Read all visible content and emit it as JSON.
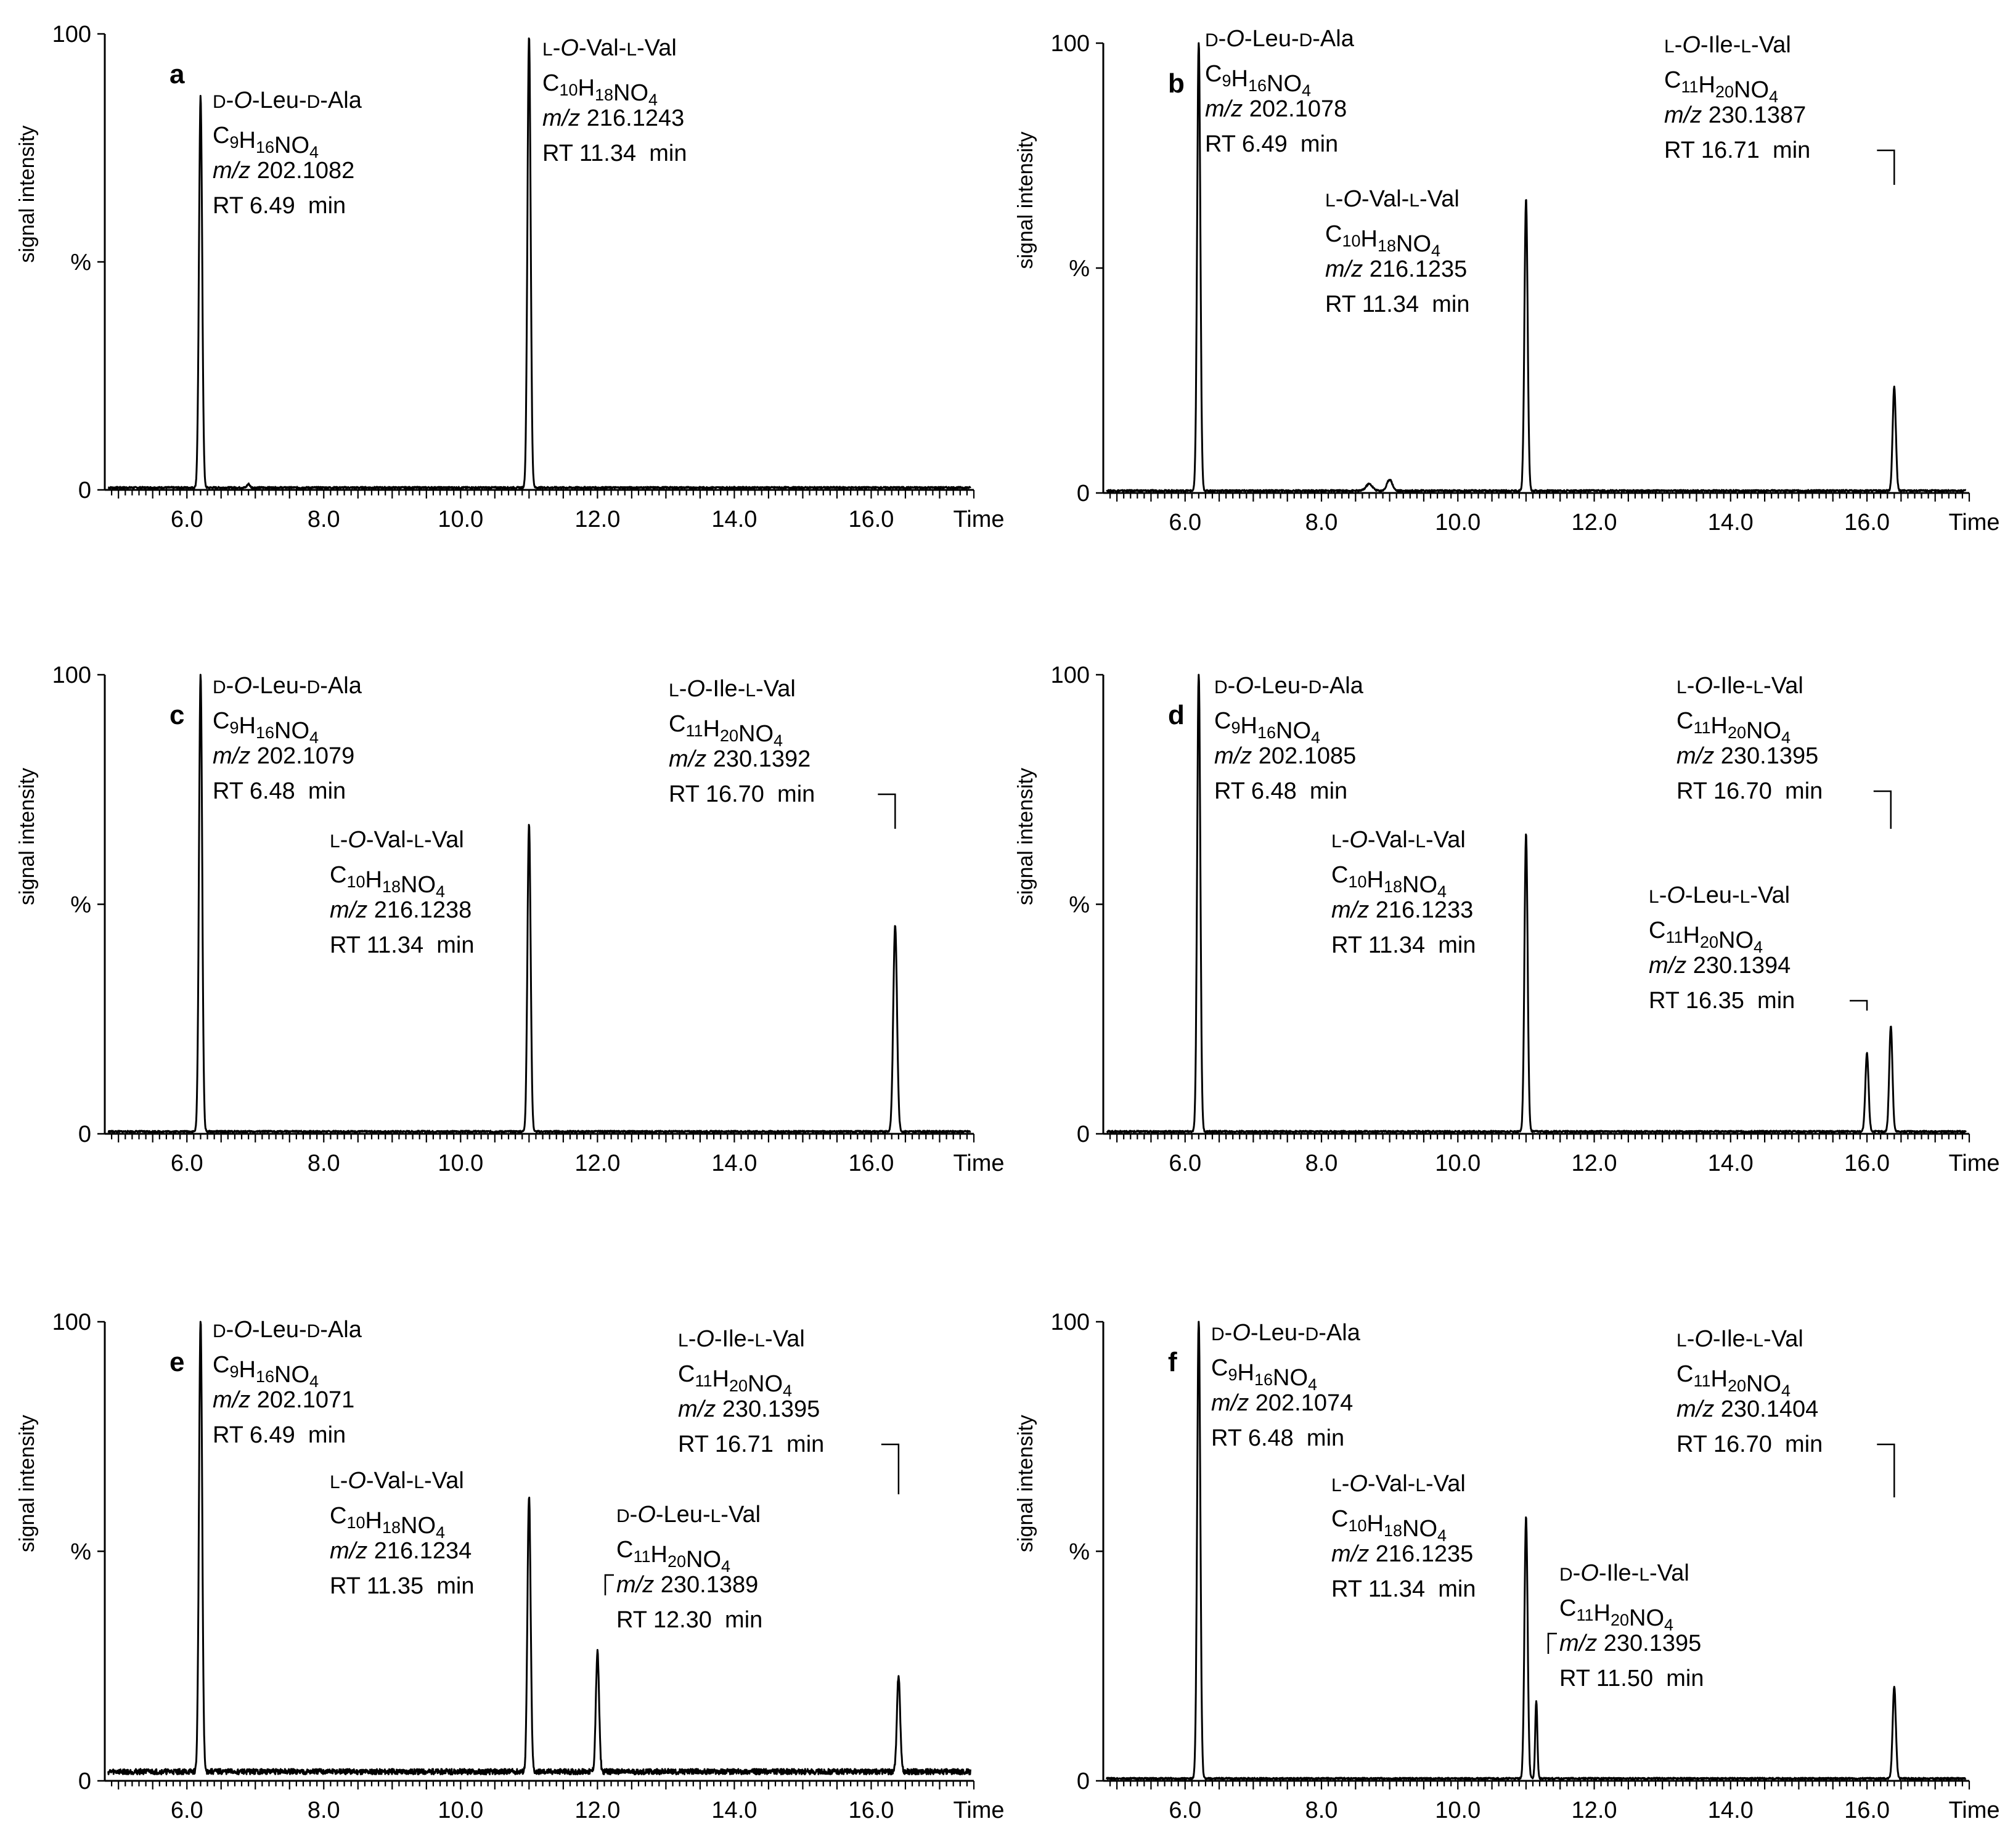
{
  "chart_data": [
    {
      "panel": "a",
      "type": "line",
      "xlabel": "Time",
      "ylabel": "signal intensity",
      "ylabel_unit": "%",
      "x_ticks": [
        "6.0",
        "8.0",
        "10.0",
        "12.0",
        "14.0",
        "16.0"
      ],
      "y_ticks": [
        "0",
        "%",
        "100"
      ],
      "xlim": [
        4.8,
        17.5
      ],
      "ylim": [
        0,
        100
      ],
      "baseline": 0.5,
      "peaks": [
        {
          "rt": 6.2,
          "height": 86,
          "width": 0.06
        },
        {
          "rt": 11.0,
          "height": 99,
          "width": 0.06
        },
        {
          "rt": 6.9,
          "height": 0.8,
          "width": 0.05
        }
      ],
      "annotations": [
        {
          "name": "D-O-Leu-D-Ala",
          "formula": "C9H16NO4",
          "mz": "202.1082",
          "rt_label": "RT 6.49  min"
        },
        {
          "name": "L-O-Val-L-Val",
          "formula": "C10H18NO4",
          "mz": "216.1243",
          "rt_label": "RT 11.34  min"
        }
      ]
    },
    {
      "panel": "b",
      "type": "line",
      "xlabel": "Time",
      "ylabel": "signal intensity",
      "ylabel_unit": "%",
      "x_ticks": [
        "6.0",
        "8.0",
        "10.0",
        "12.0",
        "14.0",
        "16.0"
      ],
      "y_ticks": [
        "0",
        "%",
        "100"
      ],
      "xlim": [
        4.8,
        17.5
      ],
      "ylim": [
        0,
        100
      ],
      "baseline": 0.5,
      "peaks": [
        {
          "rt": 6.2,
          "height": 100,
          "width": 0.06
        },
        {
          "rt": 11.0,
          "height": 65,
          "width": 0.06
        },
        {
          "rt": 16.4,
          "height": 23,
          "width": 0.06
        },
        {
          "rt": 8.7,
          "height": 1.5,
          "width": 0.12
        },
        {
          "rt": 9.0,
          "height": 2.5,
          "width": 0.1
        }
      ],
      "annotations": [
        {
          "name": "D-O-Leu-D-Ala",
          "formula": "C9H16NO4",
          "mz": "202.1078",
          "rt_label": "RT 6.49  min"
        },
        {
          "name": "L-O-Val-L-Val",
          "formula": "C10H18NO4",
          "mz": "216.1235",
          "rt_label": "RT 11.34  min"
        },
        {
          "name": "L-O-Ile-L-Val",
          "formula": "C11H20NO4",
          "mz": "230.1387",
          "rt_label": "RT 16.71  min"
        }
      ]
    },
    {
      "panel": "c",
      "type": "line",
      "xlabel": "Time",
      "ylabel": "signal intensity",
      "ylabel_unit": "%",
      "x_ticks": [
        "6.0",
        "8.0",
        "10.0",
        "12.0",
        "14.0",
        "16.0"
      ],
      "y_ticks": [
        "0",
        "%",
        "100"
      ],
      "xlim": [
        4.8,
        17.5
      ],
      "ylim": [
        0,
        100
      ],
      "baseline": 0.5,
      "peaks": [
        {
          "rt": 6.2,
          "height": 100,
          "width": 0.06
        },
        {
          "rt": 11.0,
          "height": 67,
          "width": 0.06
        },
        {
          "rt": 16.35,
          "height": 45,
          "width": 0.07
        }
      ],
      "annotations": [
        {
          "name": "D-O-Leu-D-Ala",
          "formula": "C9H16NO4",
          "mz": "202.1079",
          "rt_label": "RT 6.48  min"
        },
        {
          "name": "L-O-Val-L-Val",
          "formula": "C10H18NO4",
          "mz": "216.1238",
          "rt_label": "RT 11.34  min"
        },
        {
          "name": "L-O-Ile-L-Val",
          "formula": "C11H20NO4",
          "mz": "230.1392",
          "rt_label": "RT 16.70  min"
        }
      ]
    },
    {
      "panel": "d",
      "type": "line",
      "xlabel": "Time",
      "ylabel": "signal intensity",
      "ylabel_unit": "%",
      "x_ticks": [
        "6.0",
        "8.0",
        "10.0",
        "12.0",
        "14.0",
        "16.0"
      ],
      "y_ticks": [
        "0",
        "%",
        "100"
      ],
      "xlim": [
        4.8,
        17.5
      ],
      "ylim": [
        0,
        100
      ],
      "baseline": 0.5,
      "peaks": [
        {
          "rt": 6.2,
          "height": 100,
          "width": 0.06
        },
        {
          "rt": 11.0,
          "height": 65,
          "width": 0.06
        },
        {
          "rt": 16.0,
          "height": 17,
          "width": 0.06
        },
        {
          "rt": 16.35,
          "height": 23,
          "width": 0.06
        }
      ],
      "annotations": [
        {
          "name": "D-O-Leu-D-Ala",
          "formula": "C9H16NO4",
          "mz": "202.1085",
          "rt_label": "RT 6.48  min"
        },
        {
          "name": "L-O-Val-L-Val",
          "formula": "C10H18NO4",
          "mz": "216.1233",
          "rt_label": "RT 11.34  min"
        },
        {
          "name": "L-O-Ile-L-Val",
          "formula": "C11H20NO4",
          "mz": "230.1395",
          "rt_label": "RT 16.70  min"
        },
        {
          "name": "L-O-Leu-L-Val",
          "formula": "C11H20NO4",
          "mz": "230.1394",
          "rt_label": "RT 16.35  min"
        }
      ]
    },
    {
      "panel": "e",
      "type": "line",
      "xlabel": "Time",
      "ylabel": "signal intensity",
      "ylabel_unit": "%",
      "x_ticks": [
        "6.0",
        "8.0",
        "10.0",
        "12.0",
        "14.0",
        "16.0"
      ],
      "y_ticks": [
        "0",
        "%",
        "100"
      ],
      "xlim": [
        4.8,
        17.5
      ],
      "ylim": [
        0,
        100
      ],
      "baseline": 2,
      "peaks": [
        {
          "rt": 6.2,
          "height": 99,
          "width": 0.06
        },
        {
          "rt": 11.0,
          "height": 60,
          "width": 0.06
        },
        {
          "rt": 12.0,
          "height": 26,
          "width": 0.06
        },
        {
          "rt": 16.4,
          "height": 21,
          "width": 0.06
        }
      ],
      "annotations": [
        {
          "name": "D-O-Leu-D-Ala",
          "formula": "C9H16NO4",
          "mz": "202.1071",
          "rt_label": "RT 6.49  min"
        },
        {
          "name": "L-O-Val-L-Val",
          "formula": "C10H18NO4",
          "mz": "216.1234",
          "rt_label": "RT 11.35  min"
        },
        {
          "name": "D-O-Leu-L-Val",
          "formula": "C11H20NO4",
          "mz": "230.1389",
          "rt_label": "RT 12.30  min"
        },
        {
          "name": "L-O-Ile-L-Val",
          "formula": "C11H20NO4",
          "mz": "230.1395",
          "rt_label": "RT 16.71  min"
        }
      ]
    },
    {
      "panel": "f",
      "type": "line",
      "xlabel": "Time",
      "ylabel": "signal intensity",
      "ylabel_unit": "%",
      "x_ticks": [
        "6.0",
        "8.0",
        "10.0",
        "12.0",
        "14.0",
        "16.0"
      ],
      "y_ticks": [
        "0",
        "%",
        "100"
      ],
      "xlim": [
        4.8,
        17.5
      ],
      "ylim": [
        0,
        100
      ],
      "baseline": 0.5,
      "peaks": [
        {
          "rt": 6.2,
          "height": 100,
          "width": 0.06
        },
        {
          "rt": 11.0,
          "height": 57,
          "width": 0.06
        },
        {
          "rt": 11.15,
          "height": 17,
          "width": 0.04
        },
        {
          "rt": 16.4,
          "height": 20,
          "width": 0.06
        }
      ],
      "annotations": [
        {
          "name": "D-O-Leu-D-Ala",
          "formula": "C9H16NO4",
          "mz": "202.1074",
          "rt_label": "RT 6.48  min"
        },
        {
          "name": "L-O-Val-L-Val",
          "formula": "C10H18NO4",
          "mz": "216.1235",
          "rt_label": "RT 11.34  min"
        },
        {
          "name": "D-O-Ile-L-Val",
          "formula": "C11H20NO4",
          "mz": "230.1395",
          "rt_label": "RT 11.50  min"
        },
        {
          "name": "L-O-Ile-L-Val",
          "formula": "C11H20NO4",
          "mz": "230.1404",
          "rt_label": "RT 16.70  min"
        }
      ]
    }
  ]
}
